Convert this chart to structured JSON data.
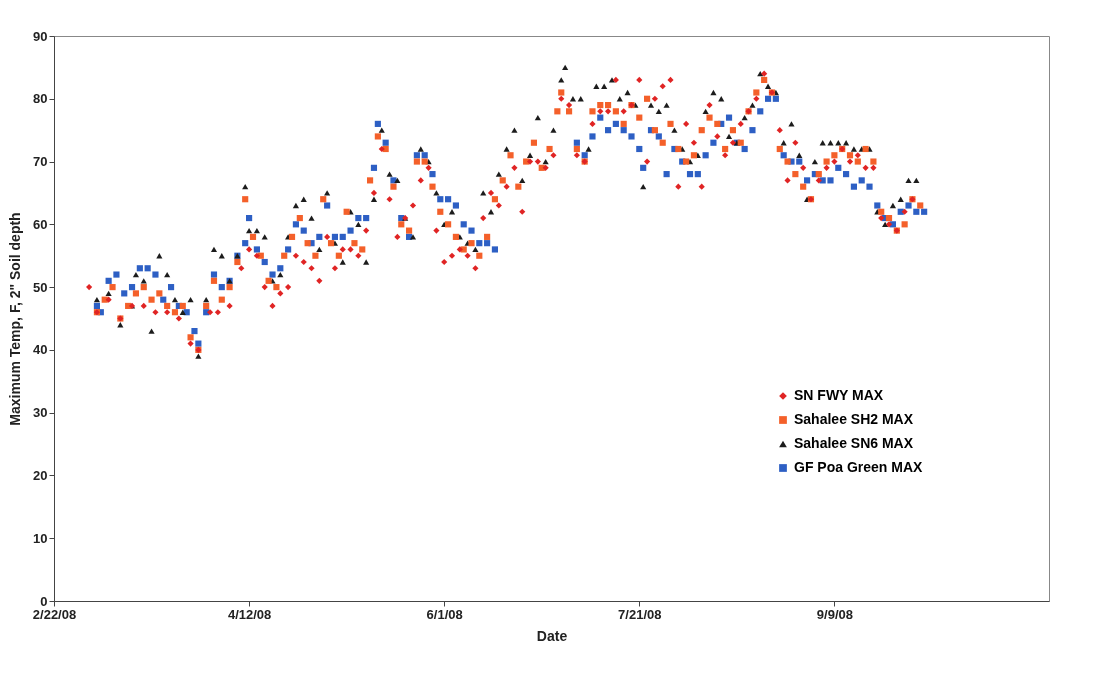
{
  "chart_data": {
    "type": "scatter",
    "xlabel": "Date",
    "ylabel": "Maximum Temp, F, 2\" Soil depth",
    "xlim": [
      "2008-02-22",
      "2008-11-03"
    ],
    "xticks": [
      {
        "value": "2008-02-22",
        "label": "2/22/08"
      },
      {
        "value": "2008-04-12",
        "label": "4/12/08"
      },
      {
        "value": "2008-06-01",
        "label": "6/1/08"
      },
      {
        "value": "2008-07-21",
        "label": "7/21/08"
      },
      {
        "value": "2008-09-09",
        "label": "9/9/08"
      }
    ],
    "ylim": [
      0,
      90
    ],
    "yticks": [
      0,
      10,
      20,
      30,
      40,
      50,
      60,
      70,
      80,
      90
    ],
    "grid": false,
    "legend": "bottom right",
    "series": [
      {
        "name": "SN FWY  MAX",
        "color": "#e02424",
        "marker": "diamond",
        "x": [
          "2008-03-02",
          "2008-03-04",
          "2008-03-07",
          "2008-03-10",
          "2008-03-13",
          "2008-03-16",
          "2008-03-19",
          "2008-03-22",
          "2008-03-25",
          "2008-03-28",
          "2008-03-30",
          "2008-04-02",
          "2008-04-04",
          "2008-04-07",
          "2008-04-10",
          "2008-04-12",
          "2008-04-14",
          "2008-04-16",
          "2008-04-18",
          "2008-04-20",
          "2008-04-22",
          "2008-04-24",
          "2008-04-26",
          "2008-04-28",
          "2008-04-30",
          "2008-05-02",
          "2008-05-04",
          "2008-05-06",
          "2008-05-08",
          "2008-05-10",
          "2008-05-12",
          "2008-05-14",
          "2008-05-16",
          "2008-05-18",
          "2008-05-20",
          "2008-05-22",
          "2008-05-24",
          "2008-05-26",
          "2008-05-28",
          "2008-05-30",
          "2008-06-01",
          "2008-06-03",
          "2008-06-05",
          "2008-06-07",
          "2008-06-09",
          "2008-06-11",
          "2008-06-13",
          "2008-06-15",
          "2008-06-17",
          "2008-06-19",
          "2008-06-21",
          "2008-06-23",
          "2008-06-25",
          "2008-06-27",
          "2008-06-29",
          "2008-07-01",
          "2008-07-03",
          "2008-07-05",
          "2008-07-07",
          "2008-07-09",
          "2008-07-11",
          "2008-07-13",
          "2008-07-15",
          "2008-07-17",
          "2008-07-19",
          "2008-07-21",
          "2008-07-23",
          "2008-07-25",
          "2008-07-27",
          "2008-07-29",
          "2008-07-31",
          "2008-08-02",
          "2008-08-04",
          "2008-08-06",
          "2008-08-08",
          "2008-08-10",
          "2008-08-12",
          "2008-08-14",
          "2008-08-16",
          "2008-08-18",
          "2008-08-20",
          "2008-08-22",
          "2008-08-24",
          "2008-08-26",
          "2008-08-28",
          "2008-08-30",
          "2008-09-01",
          "2008-09-03",
          "2008-09-05",
          "2008-09-07",
          "2008-09-09",
          "2008-09-11",
          "2008-09-13",
          "2008-09-15",
          "2008-09-17",
          "2008-09-19",
          "2008-09-21",
          "2008-09-23",
          "2008-09-25",
          "2008-09-27",
          "2008-09-29"
        ],
        "values": [
          50,
          46,
          48,
          45,
          47,
          47,
          46,
          46,
          45,
          41,
          40,
          46,
          46,
          47,
          53,
          56,
          55,
          50,
          47,
          49,
          50,
          55,
          54,
          53,
          51,
          58,
          53,
          56,
          56,
          55,
          59,
          65,
          72,
          64,
          58,
          61,
          63,
          67,
          69,
          59,
          54,
          55,
          56,
          55,
          53,
          61,
          65,
          63,
          66,
          69,
          62,
          70,
          70,
          69,
          71,
          80,
          79,
          71,
          70,
          76,
          78,
          78,
          83,
          78,
          79,
          83,
          70,
          80,
          82,
          83,
          66,
          76,
          73,
          66,
          79,
          74,
          71,
          73,
          76,
          78,
          80,
          84,
          81,
          75,
          67,
          73,
          69,
          64,
          67,
          69,
          70,
          72,
          70,
          71,
          69,
          69,
          61,
          60,
          59,
          62,
          64
        ]
      },
      {
        "name": "Sahalee SH2 MAX",
        "color": "#f4602a",
        "marker": "square",
        "x": [
          "2008-03-04",
          "2008-03-06",
          "2008-03-08",
          "2008-03-10",
          "2008-03-12",
          "2008-03-14",
          "2008-03-16",
          "2008-03-18",
          "2008-03-20",
          "2008-03-22",
          "2008-03-24",
          "2008-03-26",
          "2008-03-28",
          "2008-03-30",
          "2008-04-01",
          "2008-04-03",
          "2008-04-05",
          "2008-04-07",
          "2008-04-09",
          "2008-04-11",
          "2008-04-13",
          "2008-04-15",
          "2008-04-17",
          "2008-04-19",
          "2008-04-21",
          "2008-04-23",
          "2008-04-25",
          "2008-04-27",
          "2008-04-29",
          "2008-05-01",
          "2008-05-03",
          "2008-05-05",
          "2008-05-07",
          "2008-05-09",
          "2008-05-11",
          "2008-05-13",
          "2008-05-15",
          "2008-05-17",
          "2008-05-19",
          "2008-05-21",
          "2008-05-23",
          "2008-05-25",
          "2008-05-27",
          "2008-05-29",
          "2008-05-31",
          "2008-06-02",
          "2008-06-04",
          "2008-06-06",
          "2008-06-08",
          "2008-06-10",
          "2008-06-12",
          "2008-06-14",
          "2008-06-16",
          "2008-06-18",
          "2008-06-20",
          "2008-06-22",
          "2008-06-24",
          "2008-06-26",
          "2008-06-28",
          "2008-06-30",
          "2008-07-01",
          "2008-07-03",
          "2008-07-05",
          "2008-07-07",
          "2008-07-09",
          "2008-07-11",
          "2008-07-13",
          "2008-07-15",
          "2008-07-17",
          "2008-07-19",
          "2008-07-21",
          "2008-07-23",
          "2008-07-25",
          "2008-07-27",
          "2008-07-29",
          "2008-07-31",
          "2008-08-02",
          "2008-08-04",
          "2008-08-06",
          "2008-08-08",
          "2008-08-10",
          "2008-08-12",
          "2008-08-14",
          "2008-08-16",
          "2008-08-18",
          "2008-08-20",
          "2008-08-22",
          "2008-08-24",
          "2008-08-26",
          "2008-08-28",
          "2008-08-30",
          "2008-09-01",
          "2008-09-03",
          "2008-09-05",
          "2008-09-07",
          "2008-09-09",
          "2008-09-11",
          "2008-09-13",
          "2008-09-15",
          "2008-09-17",
          "2008-09-19",
          "2008-09-21",
          "2008-09-23",
          "2008-09-25",
          "2008-09-27",
          "2008-09-29",
          "2008-10-01"
        ],
        "values": [
          46,
          48,
          50,
          45,
          47,
          49,
          50,
          48,
          49,
          47,
          46,
          47,
          42,
          40,
          47,
          51,
          48,
          50,
          54,
          64,
          58,
          55,
          51,
          50,
          55,
          58,
          61,
          57,
          55,
          64,
          57,
          55,
          62,
          57,
          56,
          67,
          74,
          72,
          66,
          60,
          59,
          70,
          70,
          66,
          62,
          60,
          58,
          56,
          57,
          55,
          58,
          64,
          67,
          71,
          66,
          70,
          73,
          69,
          72,
          78,
          81,
          78,
          72,
          70,
          78,
          79,
          79,
          78,
          76,
          79,
          77,
          80,
          75,
          73,
          76,
          72,
          70,
          71,
          75,
          77,
          76,
          72,
          75,
          73,
          78,
          81,
          83,
          81,
          72,
          70,
          68,
          66,
          64,
          68,
          70,
          71,
          72,
          71,
          70,
          72,
          70,
          62,
          61,
          59,
          60,
          64,
          63
        ]
      },
      {
        "name": "Sahalee SN6 MAX",
        "color": "#1c1c1c",
        "marker": "triangle",
        "x": [
          "2008-03-04",
          "2008-03-07",
          "2008-03-10",
          "2008-03-13",
          "2008-03-14",
          "2008-03-16",
          "2008-03-18",
          "2008-03-20",
          "2008-03-22",
          "2008-03-24",
          "2008-03-26",
          "2008-03-28",
          "2008-03-30",
          "2008-04-01",
          "2008-04-03",
          "2008-04-05",
          "2008-04-07",
          "2008-04-09",
          "2008-04-11",
          "2008-04-12",
          "2008-04-14",
          "2008-04-16",
          "2008-04-18",
          "2008-04-20",
          "2008-04-22",
          "2008-04-24",
          "2008-04-26",
          "2008-04-28",
          "2008-04-30",
          "2008-05-02",
          "2008-05-04",
          "2008-05-06",
          "2008-05-08",
          "2008-05-10",
          "2008-05-12",
          "2008-05-14",
          "2008-05-16",
          "2008-05-18",
          "2008-05-20",
          "2008-05-22",
          "2008-05-24",
          "2008-05-26",
          "2008-05-28",
          "2008-05-30",
          "2008-06-01",
          "2008-06-03",
          "2008-06-05",
          "2008-06-07",
          "2008-06-09",
          "2008-06-11",
          "2008-06-13",
          "2008-06-15",
          "2008-06-17",
          "2008-06-19",
          "2008-06-21",
          "2008-06-23",
          "2008-06-25",
          "2008-06-27",
          "2008-06-29",
          "2008-07-01",
          "2008-07-02",
          "2008-07-04",
          "2008-07-06",
          "2008-07-08",
          "2008-07-10",
          "2008-07-12",
          "2008-07-14",
          "2008-07-16",
          "2008-07-18",
          "2008-07-20",
          "2008-07-22",
          "2008-07-24",
          "2008-07-26",
          "2008-07-28",
          "2008-07-30",
          "2008-08-01",
          "2008-08-03",
          "2008-08-05",
          "2008-08-07",
          "2008-08-09",
          "2008-08-11",
          "2008-08-13",
          "2008-08-15",
          "2008-08-17",
          "2008-08-19",
          "2008-08-21",
          "2008-08-23",
          "2008-08-25",
          "2008-08-27",
          "2008-08-29",
          "2008-08-31",
          "2008-09-02",
          "2008-09-04",
          "2008-09-06",
          "2008-09-08",
          "2008-09-10",
          "2008-09-12",
          "2008-09-14",
          "2008-09-16",
          "2008-09-18",
          "2008-09-20",
          "2008-09-22",
          "2008-09-24",
          "2008-09-26",
          "2008-09-28",
          "2008-09-30"
        ],
        "values": [
          48,
          49,
          44,
          47,
          52,
          51,
          43,
          55,
          52,
          48,
          46,
          48,
          39,
          48,
          56,
          55,
          51,
          55,
          66,
          59,
          59,
          58,
          51,
          52,
          58,
          63,
          64,
          61,
          56,
          65,
          57,
          54,
          62,
          60,
          54,
          64,
          75,
          68,
          67,
          61,
          58,
          72,
          70,
          65,
          60,
          62,
          58,
          57,
          56,
          65,
          62,
          68,
          72,
          75,
          67,
          71,
          77,
          70,
          75,
          83,
          85,
          80,
          80,
          72,
          82,
          82,
          83,
          80,
          81,
          79,
          66,
          79,
          78,
          79,
          75,
          72,
          70,
          71,
          78,
          81,
          80,
          74,
          73,
          77,
          79,
          84,
          82,
          81,
          73,
          76,
          71,
          64,
          70,
          73,
          73,
          73,
          73,
          72,
          72,
          72,
          62,
          60,
          63,
          64,
          67,
          67
        ]
      },
      {
        "name": "GF Poa Green MAX",
        "color": "#2d5fc4",
        "marker": "square",
        "x": [
          "2008-03-04",
          "2008-03-05",
          "2008-03-07",
          "2008-03-09",
          "2008-03-11",
          "2008-03-13",
          "2008-03-15",
          "2008-03-17",
          "2008-03-19",
          "2008-03-21",
          "2008-03-23",
          "2008-03-25",
          "2008-03-27",
          "2008-03-29",
          "2008-03-30",
          "2008-04-01",
          "2008-04-03",
          "2008-04-05",
          "2008-04-07",
          "2008-04-09",
          "2008-04-11",
          "2008-04-12",
          "2008-04-14",
          "2008-04-16",
          "2008-04-18",
          "2008-04-20",
          "2008-04-22",
          "2008-04-24",
          "2008-04-26",
          "2008-04-28",
          "2008-04-30",
          "2008-05-02",
          "2008-05-04",
          "2008-05-06",
          "2008-05-08",
          "2008-05-10",
          "2008-05-12",
          "2008-05-14",
          "2008-05-15",
          "2008-05-17",
          "2008-05-19",
          "2008-05-21",
          "2008-05-23",
          "2008-05-25",
          "2008-05-27",
          "2008-05-29",
          "2008-05-31",
          "2008-06-02",
          "2008-06-04",
          "2008-06-06",
          "2008-06-08",
          "2008-06-10",
          "2008-06-12",
          "2008-06-14",
          "2008-07-05",
          "2008-07-07",
          "2008-07-09",
          "2008-07-11",
          "2008-07-13",
          "2008-07-15",
          "2008-07-17",
          "2008-07-19",
          "2008-07-21",
          "2008-07-22",
          "2008-07-24",
          "2008-07-26",
          "2008-07-28",
          "2008-07-30",
          "2008-08-01",
          "2008-08-03",
          "2008-08-05",
          "2008-08-07",
          "2008-08-09",
          "2008-08-11",
          "2008-08-13",
          "2008-08-15",
          "2008-08-17",
          "2008-08-19",
          "2008-08-21",
          "2008-08-23",
          "2008-08-25",
          "2008-08-27",
          "2008-08-29",
          "2008-08-31",
          "2008-09-02",
          "2008-09-04",
          "2008-09-06",
          "2008-09-08",
          "2008-09-10",
          "2008-09-12",
          "2008-09-14",
          "2008-09-16",
          "2008-09-18",
          "2008-09-20",
          "2008-09-22",
          "2008-09-24",
          "2008-09-26",
          "2008-09-28",
          "2008-09-30",
          "2008-10-02"
        ],
        "values": [
          47,
          46,
          51,
          52,
          49,
          50,
          53,
          53,
          52,
          48,
          50,
          47,
          46,
          43,
          41,
          46,
          52,
          50,
          51,
          55,
          57,
          61,
          56,
          54,
          52,
          53,
          56,
          60,
          59,
          57,
          58,
          63,
          58,
          58,
          59,
          61,
          61,
          69,
          76,
          73,
          67,
          61,
          58,
          71,
          71,
          68,
          64,
          64,
          63,
          60,
          59,
          57,
          57,
          56,
          73,
          71,
          74,
          77,
          75,
          76,
          75,
          74,
          72,
          69,
          75,
          74,
          68,
          72,
          70,
          68,
          68,
          71,
          73,
          76,
          77,
          73,
          72,
          75,
          78,
          80,
          80,
          71,
          70,
          70,
          67,
          68,
          67,
          67,
          69,
          68,
          66,
          67,
          66,
          63,
          61,
          60,
          62,
          63,
          62,
          62
        ]
      }
    ]
  }
}
